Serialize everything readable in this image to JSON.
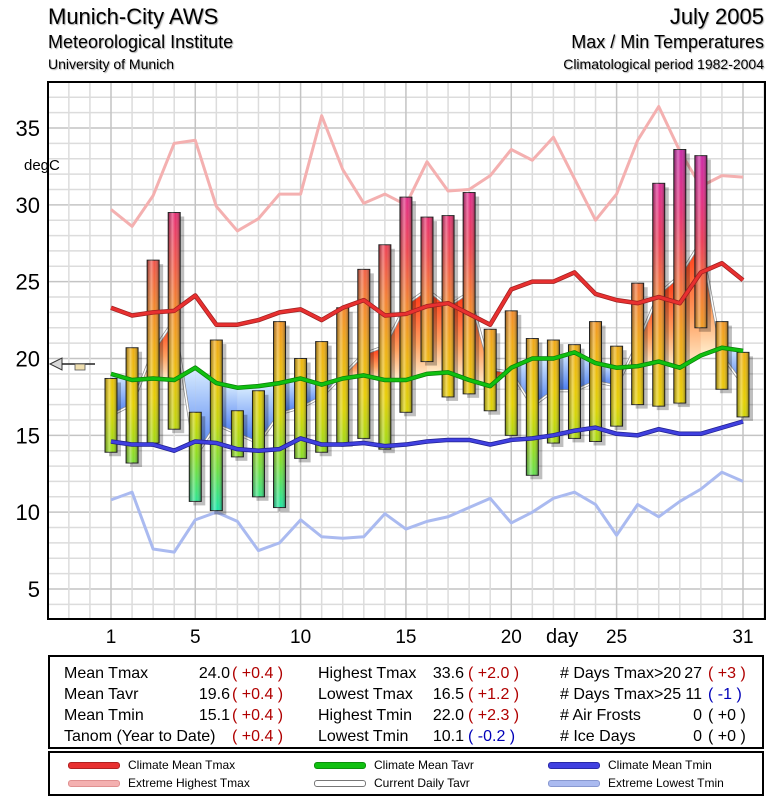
{
  "header": {
    "station": "Munich-City AWS",
    "institute": "Meteorological Institute",
    "university": "University of Munich",
    "period": "July 2005",
    "subject": "Max / Min Temperatures",
    "climatology": "Climatological period 1982-2004"
  },
  "chart_data": {
    "type": "bar",
    "title": "Max / Min Temperatures",
    "xlabel": "day",
    "ylabel": "degC",
    "ylim": [
      3,
      38
    ],
    "xlim": [
      -2.5,
      32
    ],
    "yticks": [
      5,
      10,
      15,
      20,
      25,
      30,
      35
    ],
    "xticks": [
      1,
      5,
      10,
      15,
      20,
      25,
      31
    ],
    "grid": true,
    "days": [
      1,
      2,
      3,
      4,
      5,
      6,
      7,
      8,
      9,
      10,
      11,
      12,
      13,
      14,
      15,
      16,
      17,
      18,
      19,
      20,
      21,
      22,
      23,
      24,
      25,
      26,
      27,
      28,
      29,
      30,
      31
    ],
    "series": [
      {
        "name": "Daily Tmax",
        "values": [
          18.7,
          20.7,
          26.4,
          29.5,
          16.5,
          21.2,
          16.6,
          17.9,
          22.4,
          20.0,
          21.1,
          23.3,
          25.8,
          27.4,
          30.5,
          29.2,
          29.3,
          30.8,
          21.9,
          23.1,
          21.3,
          21.2,
          20.9,
          22.4,
          20.8,
          24.9,
          31.4,
          33.6,
          33.2,
          22.4,
          20.4
        ]
      },
      {
        "name": "Daily Tmin",
        "values": [
          13.9,
          13.2,
          14.5,
          15.4,
          10.7,
          10.1,
          13.6,
          11.0,
          10.3,
          13.5,
          13.9,
          14.5,
          14.8,
          14.1,
          16.5,
          19.8,
          17.5,
          17.7,
          16.6,
          15.0,
          12.4,
          14.5,
          14.8,
          14.6,
          15.6,
          17.0,
          16.9,
          17.1,
          22.0,
          18.0,
          16.2
        ]
      },
      {
        "name": "Climate Mean Tmax",
        "color": "#e83030",
        "values": [
          23.3,
          22.8,
          23.0,
          23.1,
          24.1,
          22.2,
          22.2,
          22.5,
          23.0,
          23.2,
          22.5,
          23.3,
          23.8,
          22.8,
          22.9,
          23.4,
          23.6,
          22.9,
          22.2,
          24.5,
          25.0,
          25.0,
          25.6,
          24.2,
          23.8,
          23.6,
          24.0,
          23.6,
          25.6,
          26.2,
          25.1
        ]
      },
      {
        "name": "Extreme Highest Tmax",
        "color": "#f4b0b0",
        "values": [
          29.7,
          28.6,
          30.6,
          34.0,
          34.2,
          29.9,
          28.3,
          29.1,
          30.7,
          30.7,
          35.8,
          32.3,
          30.1,
          30.7,
          30.0,
          32.8,
          30.9,
          31.0,
          31.9,
          33.6,
          32.9,
          34.4,
          31.7,
          29.0,
          30.7,
          34.2,
          36.4,
          33.5,
          31.2,
          31.9,
          31.8
        ]
      },
      {
        "name": "Climate Mean Tavr",
        "color": "#10c010",
        "values": [
          19.0,
          18.6,
          18.7,
          18.6,
          19.4,
          18.4,
          18.1,
          18.2,
          18.4,
          18.7,
          18.3,
          18.7,
          18.9,
          18.6,
          18.6,
          19.0,
          19.1,
          18.6,
          18.2,
          19.4,
          20.0,
          20.0,
          20.4,
          19.7,
          19.4,
          19.5,
          19.8,
          19.4,
          20.2,
          20.7,
          20.5
        ]
      },
      {
        "name": "Current Daily Tavr",
        "color": "#ffffff",
        "values": [
          16.3,
          17.0,
          20.5,
          22.5,
          13.6,
          15.7,
          15.1,
          14.5,
          16.4,
          16.8,
          17.5,
          18.9,
          20.3,
          20.8,
          23.5,
          24.5,
          23.4,
          24.3,
          19.3,
          19.1,
          16.9,
          17.9,
          17.9,
          18.5,
          18.2,
          21.0,
          24.2,
          25.4,
          27.6,
          20.2,
          18.3
        ]
      },
      {
        "name": "Climate Mean Tmin",
        "color": "#4040e0",
        "values": [
          14.6,
          14.4,
          14.4,
          14.0,
          14.6,
          14.5,
          14.1,
          14.0,
          14.1,
          14.8,
          14.4,
          14.4,
          14.5,
          14.3,
          14.4,
          14.6,
          14.7,
          14.7,
          14.4,
          14.7,
          14.8,
          15.0,
          15.3,
          15.5,
          15.1,
          15.0,
          15.4,
          15.1,
          15.1,
          15.5,
          15.9
        ]
      },
      {
        "name": "Extreme Lowest Tmin",
        "color": "#aabaf0",
        "values": [
          10.8,
          11.3,
          7.6,
          7.4,
          9.5,
          10.0,
          9.4,
          7.5,
          8.0,
          9.5,
          8.4,
          8.3,
          8.4,
          9.9,
          8.9,
          9.4,
          9.7,
          10.3,
          10.9,
          9.3,
          10.0,
          10.9,
          11.3,
          10.5,
          8.5,
          10.5,
          9.7,
          10.7,
          11.5,
          12.6,
          12.0
        ]
      }
    ],
    "annotation_marker": {
      "label": "Tanom marker",
      "value": 19.6
    }
  },
  "stats": {
    "col1": [
      {
        "label": "Mean Tmax",
        "value": "24.0",
        "anom": "( +0.4 )",
        "sign": "pos"
      },
      {
        "label": "Mean Tavr",
        "value": "19.6",
        "anom": "( +0.4 )",
        "sign": "pos"
      },
      {
        "label": "Mean Tmin",
        "value": "15.1",
        "anom": "( +0.4 )",
        "sign": "pos"
      },
      {
        "label": "Tanom (Year to Date)",
        "value": "",
        "anom": "( +0.4 )",
        "sign": "pos"
      }
    ],
    "col2": [
      {
        "label": "Highest Tmax",
        "value": "33.6",
        "anom": "( +2.0 )",
        "sign": "pos"
      },
      {
        "label": "Lowest Tmax",
        "value": "16.5",
        "anom": "( +1.2 )",
        "sign": "pos"
      },
      {
        "label": "Highest Tmin",
        "value": "22.0",
        "anom": "( +2.3 )",
        "sign": "pos"
      },
      {
        "label": "Lowest Tmin",
        "value": "10.1",
        "anom": "( -0.2 )",
        "sign": "neg"
      }
    ],
    "col3": [
      {
        "label": "# Days Tmax>20",
        "value": "27",
        "anom": "( +3 )",
        "sign": "pos"
      },
      {
        "label": "# Days Tmax>25",
        "value": "11",
        "anom": "( -1 )",
        "sign": "neg"
      },
      {
        "label": "# Air Frosts",
        "value": "0",
        "anom": "( +0 )",
        "sign": "neu"
      },
      {
        "label": "# Ice Days",
        "value": "0",
        "anom": "( +0 )",
        "sign": "neu"
      }
    ]
  },
  "legend": [
    {
      "label": "Climate Mean Tmax",
      "color": "#e83030"
    },
    {
      "label": "Extreme Highest Tmax",
      "color": "#f4b0b0"
    },
    {
      "label": "Climate Mean Tavr",
      "color": "#10c010"
    },
    {
      "label": "Current Daily Tavr",
      "color": "#c8c8c8"
    },
    {
      "label": "Climate Mean Tmin",
      "color": "#4040e0"
    },
    {
      "label": "Extreme Lowest Tmin",
      "color": "#aabaf0"
    }
  ]
}
